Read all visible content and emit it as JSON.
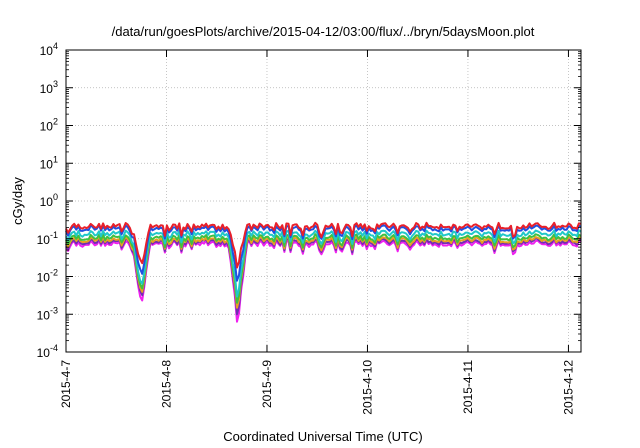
{
  "chart_data": {
    "type": "line",
    "title": "/data/run/goesPlots/archive/2015-04-12/03:00/flux/../bryn/5daysMoon.plot",
    "xlabel": "Coordinated Universal Time (UTC)",
    "ylabel": "cGy/day",
    "yscale": "log",
    "ylim": [
      0.0001,
      10000
    ],
    "xlim": [
      "2015-04-07 00:00",
      "2015-04-12 03:00"
    ],
    "x_ticks": [
      "2015-4-7",
      "2015-4-8",
      "2015-4-9",
      "2015-4-10",
      "2015-4-11",
      "2015-4-12"
    ],
    "y_ticks": [
      {
        "base": "10",
        "exp": "-4"
      },
      {
        "base": "10",
        "exp": "-3"
      },
      {
        "base": "10",
        "exp": "-2"
      },
      {
        "base": "10",
        "exp": "-1"
      },
      {
        "base": "10",
        "exp": "0"
      },
      {
        "base": "10",
        "exp": "1"
      },
      {
        "base": "10",
        "exp": "2"
      },
      {
        "base": "10",
        "exp": "3"
      },
      {
        "base": "10",
        "exp": "4"
      }
    ],
    "grid": true,
    "legend": "none",
    "series": [
      {
        "color": "#e8202a",
        "base": 0.22,
        "dips": [
          {
            "t": "2015-04-07 18:00",
            "v": 0.02
          },
          {
            "t": "2015-04-08 17:00",
            "v": 0.02
          }
        ]
      },
      {
        "color": "#2050e0",
        "base": 0.19,
        "dips": [
          {
            "t": "2015-04-07 18:00",
            "v": 0.01
          },
          {
            "t": "2015-04-08 17:00",
            "v": 0.008
          }
        ]
      },
      {
        "color": "#20c8c8",
        "base": 0.14,
        "dips": [
          {
            "t": "2015-04-07 18:00",
            "v": 0.005
          },
          {
            "t": "2015-04-08 17:00",
            "v": 0.003
          }
        ]
      },
      {
        "color": "#40c040",
        "base": 0.11,
        "dips": [
          {
            "t": "2015-04-07 18:00",
            "v": 0.004
          },
          {
            "t": "2015-04-08 17:00",
            "v": 0.002
          }
        ]
      },
      {
        "color": "#e8a020",
        "base": 0.095,
        "dips": [
          {
            "t": "2015-04-07 18:00",
            "v": 0.003
          },
          {
            "t": "2015-04-08 17:00",
            "v": 0.0015
          }
        ]
      },
      {
        "color": "#7030b0",
        "base": 0.085,
        "dips": [
          {
            "t": "2015-04-07 18:00",
            "v": 0.0025
          },
          {
            "t": "2015-04-08 17:00",
            "v": 0.001
          }
        ]
      },
      {
        "color": "#f020f0",
        "base": 0.075,
        "dips": [
          {
            "t": "2015-04-07 18:00",
            "v": 0.0018
          },
          {
            "t": "2015-04-08 17:00",
            "v": 0.0006
          }
        ]
      }
    ]
  }
}
